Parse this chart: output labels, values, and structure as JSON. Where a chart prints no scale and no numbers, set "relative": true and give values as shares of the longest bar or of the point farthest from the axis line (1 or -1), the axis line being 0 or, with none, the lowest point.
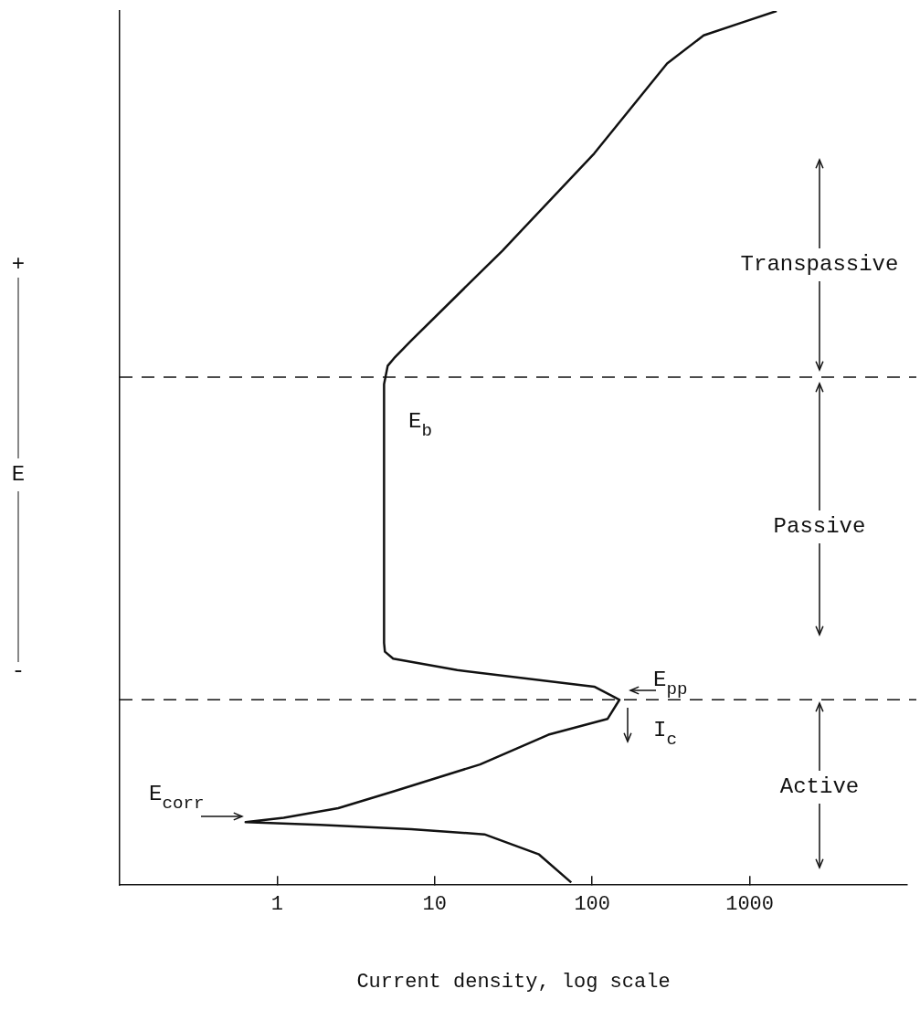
{
  "chart_data": {
    "type": "line",
    "xlabel": "Current density, log scale",
    "ylabel": "E",
    "relative": true,
    "log": "x",
    "xlim": [
      0.1,
      10000
    ],
    "xticks": [
      1,
      10,
      100,
      1000
    ],
    "grid": false,
    "legend": false,
    "marker": "none",
    "line_style": "solid",
    "series": [
      {
        "color": "#111111",
        "x": [
          73.6,
          46,
          20.7,
          7.1,
          1.87,
          0.63,
          1.1,
          2.44,
          5.45,
          19.4,
          52.7,
          125,
          149,
          103,
          13.9,
          5.45,
          4.83,
          4.77,
          4.77,
          5.03,
          5.6,
          7.1,
          27,
          103,
          299,
          510,
          869,
          1483
        ],
        "values": [
          0.003,
          0.035,
          0.058,
          0.064,
          0.069,
          0.072,
          0.077,
          0.088,
          0.107,
          0.138,
          0.172,
          0.19,
          0.212,
          0.227,
          0.246,
          0.259,
          0.267,
          0.277,
          0.573,
          0.594,
          0.604,
          0.623,
          0.726,
          0.837,
          0.94,
          0.972,
          0.986,
          1.0
        ]
      }
    ],
    "ref_lines": [
      {
        "axis": "y",
        "value": 0.581,
        "line_style": "dashed"
      },
      {
        "axis": "y",
        "value": 0.212,
        "line_style": "dashed"
      }
    ],
    "annotations": [
      "E$_{b}$",
      "E$_{pp}$",
      "I$_{c}$",
      "E$_{corr}$",
      "Transpassive",
      "Passive",
      "Active",
      "+",
      "-"
    ]
  }
}
